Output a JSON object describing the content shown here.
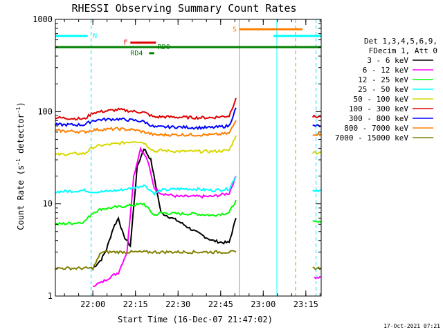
{
  "colors": {
    "black": "#000000",
    "magenta": "#ff00ff",
    "green": "#00ff00",
    "cyan": "#00ffff",
    "yellow": "#d8d800",
    "red": "#e00000",
    "blue": "#0000ff",
    "orange": "#ff7f00",
    "olive": "#808000",
    "darkgreen": "#008000",
    "nightcyan": "#00e0ff"
  },
  "chart_data": {
    "type": "line",
    "title": "RHESSI Observing Summary Count Rates",
    "xlabel": "Start Time (16-Dec-07 21:47:02)",
    "ylabel_main": "Count Rate (s",
    "ylabel_sup1": "-1",
    "ylabel_mid": " detector",
    "ylabel_sup2": "-1",
    "ylabel_end": ")",
    "yscale": "log",
    "ylim": [
      1,
      1000
    ],
    "xlim_minutes": [
      21.78,
      23.34
    ],
    "x_ticks": [
      "22:00",
      "22:15",
      "22:30",
      "22:45",
      "23:00",
      "23:15"
    ],
    "x_tick_hours": [
      22.0,
      22.25,
      22.5,
      22.75,
      23.0,
      23.25
    ],
    "y_ticks": [
      "1",
      "10",
      "100",
      "1000"
    ],
    "y_tick_values": [
      1,
      10,
      100,
      1000
    ],
    "legend_title1": "Det 1,3,4,5,6,9,",
    "legend_title2": "FDecim 1, Att 0",
    "series": [
      {
        "name": "3 - 6 keV",
        "color": "#000000",
        "segments": [
          {
            "x": [
              22.0,
              22.05,
              22.08,
              22.12,
              22.15,
              22.18,
              22.22,
              22.26,
              22.3,
              22.34,
              22.4,
              22.5,
              22.6,
              22.7,
              22.76,
              22.8,
              22.84
            ],
            "y": [
              2.0,
              2.5,
              3.2,
              5.5,
              7.0,
              4.5,
              3.5,
              25,
              40,
              30,
              8,
              6.5,
              5,
              4,
              3.8,
              3.8,
              7
            ]
          }
        ]
      },
      {
        "name": "6 - 12 keV",
        "color": "#ff00ff",
        "segments": [
          {
            "x": [
              22.0,
              22.05,
              22.1,
              22.15,
              22.2,
              22.24,
              22.28,
              22.32,
              22.36,
              22.4,
              22.5,
              22.6,
              22.7,
              22.8,
              22.84
            ],
            "y": [
              1.3,
              1.4,
              1.6,
              1.8,
              3.0,
              20,
              40,
              30,
              15,
              13,
              12,
              12,
              12,
              13,
              20
            ]
          },
          {
            "x": [
              23.3,
              23.34
            ],
            "y": [
              1.6,
              1.6
            ]
          }
        ]
      },
      {
        "name": "12 - 25 keV",
        "color": "#00ff00",
        "segments": [
          {
            "x": [
              21.78,
              21.9,
              21.95,
              22.0,
              22.05,
              22.1,
              22.2,
              22.3,
              22.36,
              22.4,
              22.5,
              22.6,
              22.7,
              22.8,
              22.84
            ],
            "y": [
              6.0,
              6.2,
              6.4,
              8.0,
              8.8,
              9.0,
              9.5,
              10,
              7.5,
              8.0,
              7.8,
              7.8,
              7.5,
              8.0,
              11
            ]
          },
          {
            "x": [
              23.29,
              23.34
            ],
            "y": [
              6.3,
              6.3
            ]
          }
        ]
      },
      {
        "name": "25 - 50 keV",
        "color": "#00ffff",
        "segments": [
          {
            "x": [
              21.78,
              21.9,
              21.95,
              22.0,
              22.05,
              22.15,
              22.25,
              22.3,
              22.36,
              22.4,
              22.5,
              22.6,
              22.7,
              22.8,
              22.84
            ],
            "y": [
              13.5,
              13.8,
              14.0,
              13.5,
              13.5,
              14.0,
              15.0,
              16.0,
              13.0,
              14.0,
              14.5,
              14.5,
              14.0,
              14.5,
              20
            ]
          },
          {
            "x": [
              23.29,
              23.34
            ],
            "y": [
              14.0,
              14.0
            ]
          }
        ]
      },
      {
        "name": "50 - 100 keV",
        "color": "#d8d800",
        "segments": [
          {
            "x": [
              21.78,
              21.9,
              21.95,
              22.0,
              22.05,
              22.15,
              22.25,
              22.3,
              22.36,
              22.4,
              22.5,
              22.6,
              22.7,
              22.8,
              22.84
            ],
            "y": [
              34,
              35,
              35,
              41,
              43,
              45,
              48,
              46,
              37,
              38,
              37,
              37,
              37,
              38,
              55
            ]
          },
          {
            "x": [
              23.29,
              23.34
            ],
            "y": [
              36,
              36
            ]
          }
        ]
      },
      {
        "name": "100 - 300 keV",
        "color": "#e00000",
        "segments": [
          {
            "x": [
              21.78,
              21.9,
              21.95,
              22.0,
              22.05,
              22.15,
              22.25,
              22.3,
              22.36,
              22.4,
              22.5,
              22.6,
              22.7,
              22.8,
              22.84
            ],
            "y": [
              86,
              84,
              83,
              97,
              100,
              105,
              100,
              98,
              87,
              88,
              87,
              86,
              86,
              90,
              140
            ]
          },
          {
            "x": [
              23.29,
              23.34
            ],
            "y": [
              88,
              88
            ]
          }
        ]
      },
      {
        "name": "300 - 800 keV",
        "color": "#0000ff",
        "segments": [
          {
            "x": [
              21.78,
              21.9,
              21.95,
              22.0,
              22.05,
              22.15,
              22.25,
              22.3,
              22.36,
              22.4,
              22.5,
              22.6,
              22.7,
              22.8,
              22.84
            ],
            "y": [
              72,
              72,
              72,
              80,
              82,
              83,
              80,
              78,
              68,
              68,
              68,
              67,
              67,
              70,
              110
            ]
          },
          {
            "x": [
              23.29,
              23.34
            ],
            "y": [
              70,
              70
            ]
          }
        ]
      },
      {
        "name": "800 - 7000 keV",
        "color": "#ff7f00",
        "segments": [
          {
            "x": [
              21.78,
              21.9,
              21.95,
              22.0,
              22.05,
              22.15,
              22.25,
              22.3,
              22.36,
              22.4,
              22.5,
              22.6,
              22.7,
              22.8,
              22.84
            ],
            "y": [
              62,
              61,
              60,
              63,
              64,
              65,
              63,
              60,
              56,
              56,
              56,
              56,
              56,
              58,
              80
            ]
          },
          {
            "x": [
              23.29,
              23.34
            ],
            "y": [
              57,
              57
            ]
          }
        ]
      },
      {
        "name": "7000 - 15000 keV",
        "color": "#808000",
        "segments": [
          {
            "x": [
              21.78,
              22.0,
              22.05,
              22.1,
              22.2,
              22.3,
              22.4,
              22.5,
              22.6,
              22.7,
              22.8,
              22.84
            ],
            "y": [
              2.0,
              2.0,
              3.0,
              3.0,
              3.0,
              3.0,
              3.0,
              3.0,
              3.0,
              3.0,
              3.0,
              3.0
            ]
          },
          {
            "x": [
              23.29,
              23.34
            ],
            "y": [
              2.0,
              2.0
            ]
          }
        ]
      }
    ],
    "night_intervals": [
      {
        "label": "N",
        "x_start": 21.78,
        "x_end": 21.97,
        "y": 660,
        "color": "#00ffff",
        "label_x": 22.0
      },
      {
        "label": "",
        "x_start": 23.06,
        "x_end": 23.34,
        "y": 660,
        "color": "#00ffff",
        "label_x": 23.06
      }
    ],
    "saa_intervals": [
      {
        "label": "S",
        "x_start": 22.86,
        "x_end": 23.23,
        "y": 780,
        "color": "#ff7f00",
        "label_x": 22.82
      }
    ],
    "flare_intervals": [
      {
        "label": "F",
        "x_start": 22.22,
        "x_end": 22.37,
        "y": 560,
        "color": "#e00000",
        "label_x": 22.18
      }
    ],
    "data_gap_markers": [
      {
        "label": "RD0",
        "x_start": 21.78,
        "x_end": 23.34,
        "y": 500,
        "color": "#008000",
        "label_x": 22.38
      },
      {
        "label": "RD4",
        "x_start": 22.33,
        "x_end": 22.36,
        "y": 430,
        "color": "#008000",
        "label_x": 22.22
      }
    ],
    "vlines": [
      {
        "x": 21.99,
        "color": "#00e0ff",
        "dash": true
      },
      {
        "x": 22.86,
        "color": "#ff7f00",
        "dash": false
      },
      {
        "x": 23.08,
        "color": "#00ffff",
        "dash": false
      },
      {
        "x": 23.19,
        "color": "#ff7f00",
        "dash": true
      },
      {
        "x": 23.31,
        "color": "#00e0ff",
        "dash": true
      }
    ]
  },
  "stamp": "17-Oct-2021 07:21"
}
